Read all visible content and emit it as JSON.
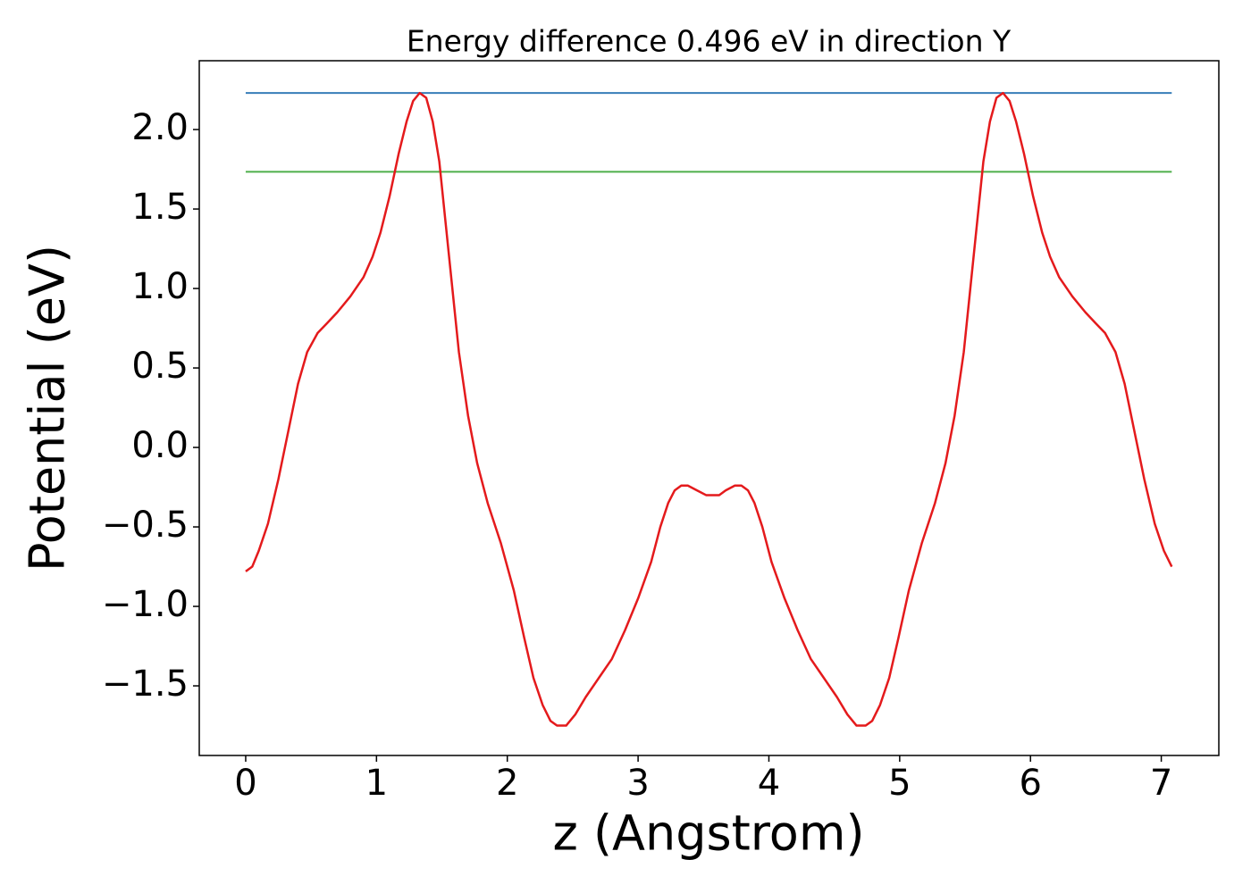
{
  "chart_data": {
    "type": "line",
    "title": "Energy difference 0.496 eV in direction Y",
    "xlabel": "z (Angstrom)",
    "ylabel": "Potential (eV)",
    "xlim": [
      -0.355,
      7.44
    ],
    "ylim": [
      -1.938,
      2.433
    ],
    "xticks": [
      0,
      1,
      2,
      3,
      4,
      5,
      6,
      7
    ],
    "yticks": [
      {
        "value": -1.5,
        "label": "−1.5"
      },
      {
        "value": -1.0,
        "label": "−1.0"
      },
      {
        "value": -0.5,
        "label": "−0.5"
      },
      {
        "value": 0,
        "label": "0.0"
      },
      {
        "value": 0.5,
        "label": "0.5"
      },
      {
        "value": 1.0,
        "label": "1.0"
      },
      {
        "value": 1.5,
        "label": "1.5"
      },
      {
        "value": 2.0,
        "label": "2.0"
      }
    ],
    "grid": false,
    "series": [
      {
        "color": "#e41a1c",
        "x": [
          0,
          0.05,
          0.1,
          0.17,
          0.25,
          0.33,
          0.4,
          0.47,
          0.55,
          0.62,
          0.7,
          0.8,
          0.9,
          0.97,
          1.03,
          1.1,
          1.17,
          1.23,
          1.28,
          1.33,
          1.38,
          1.43,
          1.48,
          1.53,
          1.58,
          1.63,
          1.7,
          1.77,
          1.85,
          1.95,
          2.05,
          2.13,
          2.2,
          2.27,
          2.33,
          2.38,
          2.45,
          2.52,
          2.6,
          2.7,
          2.8,
          2.9,
          3.0,
          3.1,
          3.17,
          3.23,
          3.28,
          3.33,
          3.38,
          3.45,
          3.52,
          3.56,
          3.62,
          3.67,
          3.74,
          3.79,
          3.84,
          3.89,
          3.95,
          4.02,
          4.12,
          4.22,
          4.32,
          4.42,
          4.52,
          4.6,
          4.67,
          4.74,
          4.79,
          4.85,
          4.92,
          4.99,
          5.07,
          5.17,
          5.27,
          5.35,
          5.42,
          5.49,
          5.54,
          5.59,
          5.64,
          5.69,
          5.74,
          5.79,
          5.84,
          5.89,
          5.95,
          6.02,
          6.09,
          6.15,
          6.22,
          6.32,
          6.42,
          6.5,
          6.57,
          6.65,
          6.72,
          6.79,
          6.87,
          6.95,
          7.02,
          7.08
        ],
        "values": [
          -0.78,
          -0.75,
          -0.65,
          -0.48,
          -0.2,
          0.12,
          0.4,
          0.6,
          0.72,
          0.78,
          0.85,
          0.95,
          1.07,
          1.2,
          1.35,
          1.58,
          1.85,
          2.05,
          2.18,
          2.23,
          2.2,
          2.05,
          1.8,
          1.4,
          1.0,
          0.6,
          0.2,
          -0.1,
          -0.35,
          -0.6,
          -0.9,
          -1.2,
          -1.45,
          -1.62,
          -1.72,
          -1.75,
          -1.75,
          -1.68,
          -1.57,
          -1.45,
          -1.33,
          -1.15,
          -0.95,
          -0.72,
          -0.5,
          -0.35,
          -0.27,
          -0.24,
          -0.24,
          -0.27,
          -0.3,
          -0.3,
          -0.3,
          -0.27,
          -0.24,
          -0.24,
          -0.27,
          -0.35,
          -0.5,
          -0.72,
          -0.95,
          -1.15,
          -1.33,
          -1.45,
          -1.57,
          -1.68,
          -1.75,
          -1.75,
          -1.72,
          -1.62,
          -1.45,
          -1.2,
          -0.9,
          -0.6,
          -0.35,
          -0.1,
          0.2,
          0.6,
          1.0,
          1.4,
          1.8,
          2.05,
          2.2,
          2.23,
          2.18,
          2.05,
          1.85,
          1.58,
          1.35,
          1.2,
          1.07,
          0.95,
          0.85,
          0.78,
          0.72,
          0.6,
          0.4,
          0.12,
          -0.2,
          -0.48,
          -0.65,
          -0.75
        ]
      },
      {
        "color": "#377eb8",
        "x": [
          0,
          7.08
        ],
        "values": [
          2.23,
          2.23
        ]
      },
      {
        "color": "#4daf4a",
        "x": [
          0,
          7.08
        ],
        "values": [
          1.734,
          1.734
        ]
      }
    ]
  }
}
